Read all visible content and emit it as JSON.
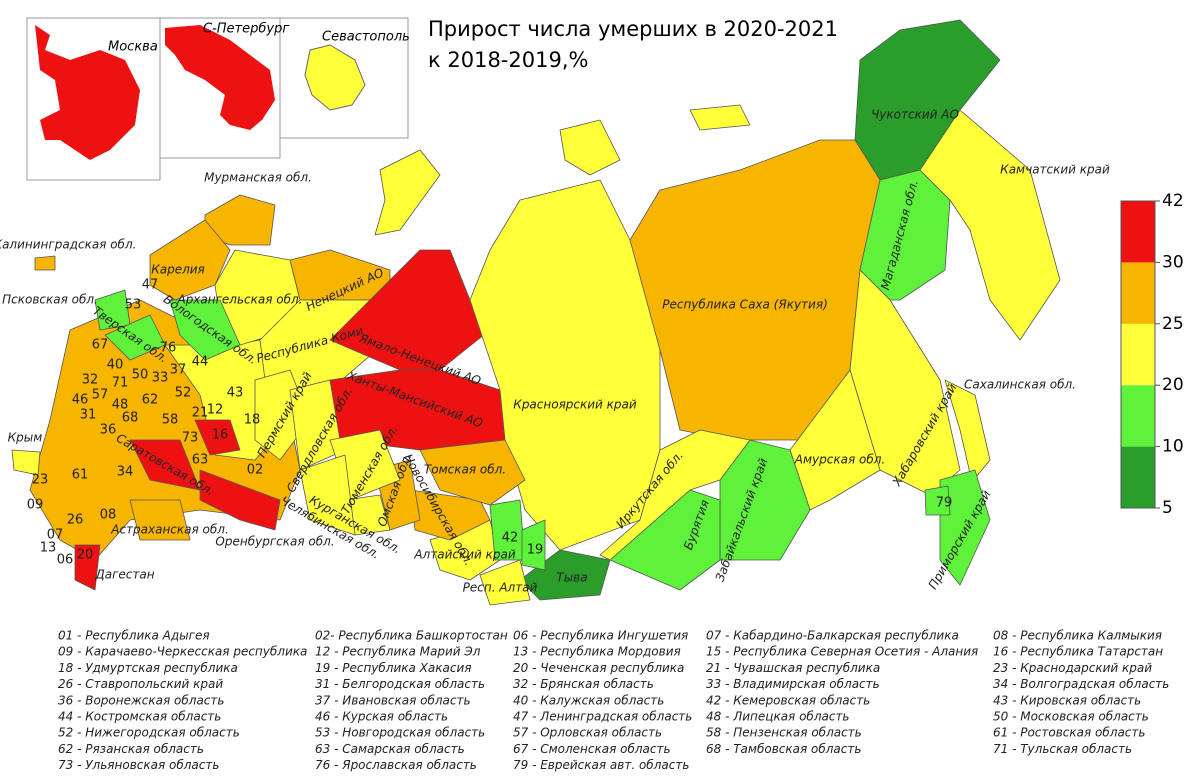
{
  "title": [
    "Прирост числа умерших в 2020-2021",
    "к 2018-2019,%"
  ],
  "insets": [
    "Москва",
    "С-Петербург",
    "Севастополь"
  ],
  "scale": {
    "ticks": [
      5,
      10,
      20,
      25,
      30,
      42
    ],
    "colors": [
      "#2a9d2a",
      "#5ef23a",
      "#ffff3a",
      "#f7b500",
      "#ee1111"
    ]
  },
  "regions": [
    {
      "name": "Мурманская обл.",
      "color": "#f7b500"
    },
    {
      "name": "Калининградская обл.",
      "color": "#f7b500"
    },
    {
      "name": "Псковская обл.",
      "color": "#5ef23a"
    },
    {
      "name": "Крым",
      "color": "#ffff3a"
    },
    {
      "name": "Карелия",
      "color": "#f7b500"
    },
    {
      "name": "Архангельская обл.",
      "color": "#ffff3a"
    },
    {
      "name": "Ненецкий АО",
      "color": "#f7b500"
    },
    {
      "name": "Республика Коми",
      "color": "#ffff3a"
    },
    {
      "name": "Вологодская обл.",
      "color": "#5ef23a"
    },
    {
      "name": "Тверская обл.",
      "color": "#5ef23a"
    },
    {
      "name": "Пермский край",
      "color": "#ffff3a"
    },
    {
      "name": "Свердловская обл.",
      "color": "#ffff3a"
    },
    {
      "name": "Ямало-Ненецкий АО",
      "color": "#ee1111"
    },
    {
      "name": "Ханты-Мансийский АО",
      "color": "#ee1111"
    },
    {
      "name": "Красноярский край",
      "color": "#ffff3a"
    },
    {
      "name": "Республика Саха (Якутия)",
      "color": "#f7b500"
    },
    {
      "name": "Чукотский АО",
      "color": "#2a9d2a"
    },
    {
      "name": "Магаданская обл.",
      "color": "#5ef23a"
    },
    {
      "name": "Камчатский край",
      "color": "#ffff3a"
    },
    {
      "name": "Сахалинская обл.",
      "color": "#ffff3a"
    },
    {
      "name": "Хабаровский край",
      "color": "#ffff3a"
    },
    {
      "name": "Амурская обл.",
      "color": "#ffff3a"
    },
    {
      "name": "Приморский край",
      "color": "#5ef23a"
    },
    {
      "name": "Забайкальский край",
      "color": "#5ef23a"
    },
    {
      "name": "Бурятия",
      "color": "#5ef23a"
    },
    {
      "name": "Иркутская обл.",
      "color": "#ffff3a"
    },
    {
      "name": "Тыва",
      "color": "#2a9d2a"
    },
    {
      "name": "Респ. Алтай",
      "color": "#ffff3a"
    },
    {
      "name": "Алтайский край",
      "color": "#ffff3a"
    },
    {
      "name": "Новосибирская обл.",
      "color": "#f7b500"
    },
    {
      "name": "Томская обл.",
      "color": "#f7b500"
    },
    {
      "name": "Омская обл.",
      "color": "#f7b500"
    },
    {
      "name": "Тюменская обл.",
      "color": "#ffff3a"
    },
    {
      "name": "Курганская обл.",
      "color": "#ffff3a"
    },
    {
      "name": "Челябинская обл.",
      "color": "#ffff3a"
    },
    {
      "name": "Оренбургская обл.",
      "color": "#ee1111"
    },
    {
      "name": "Саратовская обл.",
      "color": "#ee1111"
    },
    {
      "name": "Астраханская обл.",
      "color": "#f7b500"
    },
    {
      "name": "Дагестан",
      "color": "#ee1111"
    }
  ],
  "map_numbers": [
    "53",
    "47",
    "67",
    "40",
    "32",
    "57",
    "71",
    "50",
    "33",
    "37",
    "76",
    "44",
    "52",
    "46",
    "31",
    "48",
    "62",
    "36",
    "58",
    "68",
    "73",
    "21",
    "12",
    "63",
    "43",
    "18",
    "16",
    "02",
    "61",
    "34",
    "08",
    "23",
    "09",
    "26",
    "07",
    "13",
    "06",
    "20",
    "42",
    "19",
    "79"
  ],
  "legend": [
    [
      "01 - Республика Адыгея",
      "02- Республика Башкортостан",
      "06 - Республика Ингушетия",
      "07 - Кабардино-Балкарская республика",
      "08 - Республика Калмыкия"
    ],
    [
      "09 - Карачаево-Черкесская республика",
      "12 - Республика Марий Эл",
      "13 - Республика Мордовия",
      "15 - Республика Северная Осетия - Алания",
      "16 - Республика Татарстан"
    ],
    [
      "18 - Удмуртская республика",
      "19 - Республика Хакасия",
      "20 - Чеченская республика",
      "21 - Чувашская республика",
      "23 - Краснодарский край"
    ],
    [
      "26 - Ставропольский край",
      "31 - Белгородская область",
      "32 - Брянская область",
      "33 - Владимирская область",
      "34 - Волгоградская область"
    ],
    [
      "36 - Воронежская область",
      "37 - Ивановская область",
      "40 - Калужская область",
      "42 - Кемеровская область",
      "43 - Кировская область"
    ],
    [
      "44 - Костромская область",
      "46 - Курская область",
      "47 - Ленинградская область",
      "48 - Липецкая область",
      "50 - Московская область"
    ],
    [
      "52 - Нижегородская область",
      "53 - Новгородская область",
      "57 - Орловская область",
      "58 - Пензенская область",
      "61 - Ростовская область"
    ],
    [
      "62 - Рязанская область",
      "63 - Самарская область",
      "67 - Смоленская область",
      "68 - Тамбовская область",
      "71 - Тульская область"
    ],
    [
      "73 - Ульяновская область",
      "76 - Ярославская область",
      "79 - Еврейская авт. область"
    ]
  ]
}
